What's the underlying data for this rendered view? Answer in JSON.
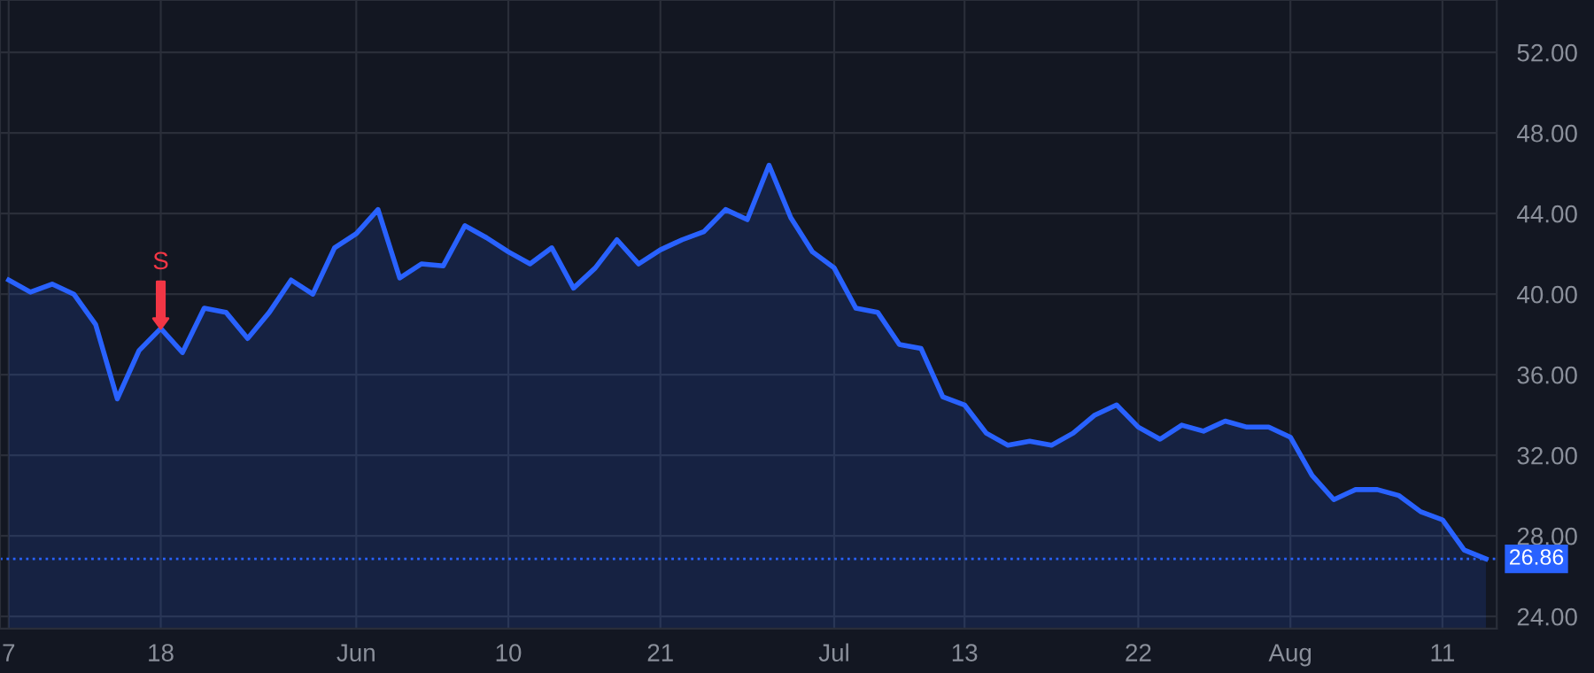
{
  "chart_data": {
    "type": "area",
    "categories": [
      "7",
      null,
      null,
      null,
      null,
      null,
      null,
      "18",
      null,
      null,
      null,
      null,
      null,
      null,
      null,
      null,
      "Jun",
      null,
      null,
      null,
      null,
      null,
      null,
      "10",
      null,
      null,
      null,
      null,
      null,
      null,
      "21",
      null,
      null,
      null,
      null,
      null,
      null,
      null,
      "Jul",
      null,
      null,
      null,
      null,
      null,
      "13",
      null,
      null,
      null,
      null,
      null,
      null,
      null,
      "22",
      null,
      null,
      null,
      null,
      null,
      null,
      "Aug",
      null,
      null,
      null,
      null,
      null,
      null,
      "11",
      null,
      null
    ],
    "series": [
      {
        "color": "#2962ff",
        "values": [
          40.7,
          40.1,
          40.5,
          40.0,
          38.5,
          34.8,
          37.2,
          38.3,
          37.1,
          39.3,
          39.1,
          37.8,
          39.1,
          40.7,
          40.0,
          42.3,
          43.0,
          44.2,
          40.8,
          41.5,
          41.4,
          43.4,
          42.8,
          42.1,
          41.5,
          42.3,
          40.3,
          41.3,
          42.7,
          41.5,
          42.2,
          42.7,
          43.1,
          44.2,
          43.7,
          46.4,
          43.8,
          42.1,
          41.3,
          39.3,
          39.1,
          37.5,
          37.3,
          34.9,
          34.5,
          33.1,
          32.5,
          32.7,
          32.5,
          33.1,
          34.0,
          34.5,
          33.4,
          32.8,
          33.5,
          33.2,
          33.7,
          33.4,
          33.4,
          32.9,
          31.0,
          29.8,
          30.3,
          30.3,
          30.0,
          29.2,
          28.8,
          27.3,
          26.86
        ]
      }
    ],
    "ylim": [
      23.4,
      54.6
    ],
    "yticks": [
      {
        "value": 24,
        "label": "24.00"
      },
      {
        "value": 28,
        "label": "28.00"
      },
      {
        "value": 32,
        "label": "32.00"
      },
      {
        "value": 36,
        "label": "36.00"
      },
      {
        "value": 40,
        "label": "40.00"
      },
      {
        "value": 44,
        "label": "44.00"
      },
      {
        "value": 48,
        "label": "48.00"
      },
      {
        "value": 52,
        "label": "52.00"
      }
    ],
    "grid": true,
    "ref_lines": [
      {
        "axis": "y",
        "value": 26.86,
        "label": "26.86",
        "color": "#2962ff",
        "line_style": "dotted"
      }
    ],
    "annotations": [
      {
        "text": "S",
        "x": "18",
        "y": 38.3
      }
    ]
  }
}
